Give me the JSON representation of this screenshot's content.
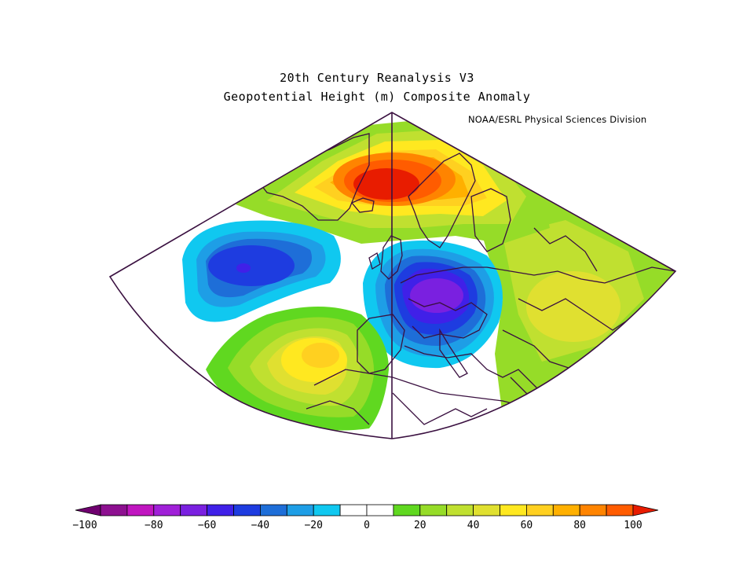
{
  "header": {
    "title_line1": "20th Century Reanalysis V3",
    "title_line2": "Geopotential Height (m) Composite Anomaly",
    "credit": "NOAA/ESRL Physical Sciences Division"
  },
  "map": {
    "projection": "conic sector",
    "region": "North Atlantic and Europe"
  },
  "colorbar": {
    "min": -100,
    "max": 100,
    "step": 10,
    "tick_labels": [
      "-100",
      "-80",
      "-60",
      "-40",
      "-20",
      "0",
      "20",
      "40",
      "60",
      "80",
      "100"
    ],
    "colors": [
      "#6f006f",
      "#8d1090",
      "#c016c0",
      "#a020d8",
      "#7a20e0",
      "#4020e8",
      "#1e3ce0",
      "#1e6ed8",
      "#1e9ee6",
      "#10c8f0",
      "#ffffff",
      "#ffffff",
      "#60d820",
      "#96dc28",
      "#c0e030",
      "#e0e030",
      "#ffe820",
      "#ffd020",
      "#ffb000",
      "#ff8400",
      "#ff5c00",
      "#e81c00"
    ]
  },
  "anomaly_centers": [
    {
      "name": "greenland-norway-high",
      "value": 100
    },
    {
      "name": "west-atlantic-low",
      "value": -40
    },
    {
      "name": "europe-low",
      "value": -60
    },
    {
      "name": "subtropical-atlantic-high",
      "value": 60
    },
    {
      "name": "east-europe-high",
      "value": 30
    }
  ]
}
